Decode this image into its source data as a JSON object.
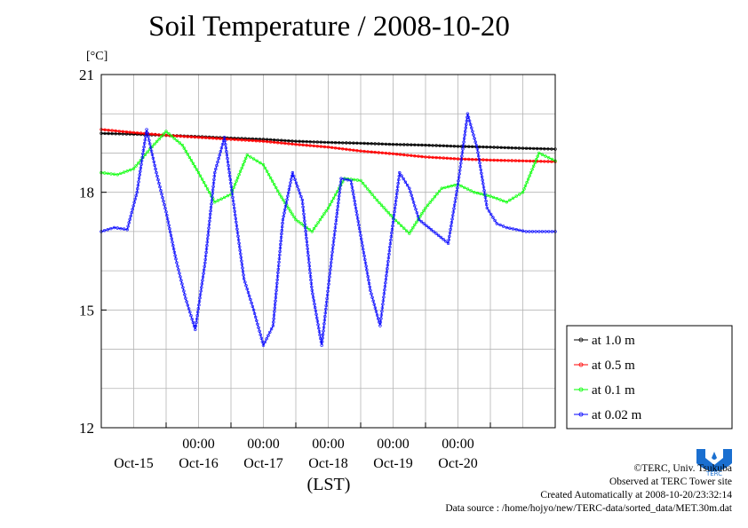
{
  "title": "Soil Temperature / 2008-10-20",
  "y_unit": "[°C]",
  "x_unit": "(LST)",
  "credits": {
    "copyright": "©TERC, Univ. Tsukuba",
    "site": "Observed at TERC Tower site",
    "created": "Created Automatically at 2008-10-20/23:32:14",
    "source": "Data source : /home/hojyo/new/TERC-data/sorted_data/MET.30m.dat"
  },
  "colors": {
    "at_1_0_m": "#000000",
    "at_0_5_m": "#ff0000",
    "at_0_1_m": "#00ff00",
    "at_0_02_m": "#0000ff"
  },
  "chart_data": {
    "type": "line",
    "title": "Soil Temperature / 2008-10-20",
    "xlabel": "(LST)",
    "ylabel": "[°C]",
    "x_unit": "day",
    "x_tick_labels": [
      {
        "x": 15,
        "top": "",
        "bottom": "Oct-15"
      },
      {
        "x": 16,
        "top": "00:00",
        "bottom": "Oct-16"
      },
      {
        "x": 17,
        "top": "00:00",
        "bottom": "Oct-17"
      },
      {
        "x": 18,
        "top": "00:00",
        "bottom": "Oct-18"
      },
      {
        "x": 19,
        "top": "00:00",
        "bottom": "Oct-19"
      },
      {
        "x": 20,
        "top": "00:00",
        "bottom": "Oct-20"
      }
    ],
    "xlim": [
      14.0,
      21.0
    ],
    "ylim": [
      12,
      21
    ],
    "y_ticks": [
      12,
      15,
      18,
      21
    ],
    "grid": true,
    "legend_position": "right",
    "series": [
      {
        "name": "at 1.0 m",
        "color": "#000000",
        "x": [
          14.0,
          14.5,
          15.0,
          15.5,
          16.0,
          16.5,
          17.0,
          17.5,
          18.0,
          18.5,
          19.0,
          19.5,
          20.0,
          20.5,
          21.0
        ],
        "y": [
          19.5,
          19.48,
          19.45,
          19.42,
          19.38,
          19.35,
          19.3,
          19.27,
          19.25,
          19.22,
          19.2,
          19.17,
          19.15,
          19.12,
          19.1
        ]
      },
      {
        "name": "at 0.5 m",
        "color": "#ff0000",
        "x": [
          14.0,
          14.5,
          15.0,
          15.5,
          16.0,
          16.5,
          17.0,
          17.5,
          18.0,
          18.5,
          19.0,
          19.5,
          20.0,
          20.5,
          21.0
        ],
        "y": [
          19.6,
          19.52,
          19.45,
          19.4,
          19.35,
          19.3,
          19.22,
          19.15,
          19.05,
          18.98,
          18.9,
          18.85,
          18.82,
          18.8,
          18.78
        ]
      },
      {
        "name": "at 0.1 m",
        "color": "#00ff00",
        "x": [
          14.0,
          14.25,
          14.5,
          14.75,
          15.0,
          15.25,
          15.5,
          15.75,
          16.0,
          16.25,
          16.5,
          16.75,
          17.0,
          17.25,
          17.5,
          17.75,
          18.0,
          18.25,
          18.5,
          18.75,
          19.0,
          19.25,
          19.5,
          19.75,
          20.0,
          20.25,
          20.5,
          20.75,
          21.0
        ],
        "y": [
          18.5,
          18.45,
          18.6,
          19.1,
          19.55,
          19.2,
          18.5,
          17.75,
          17.95,
          18.95,
          18.7,
          17.95,
          17.3,
          17.0,
          17.6,
          18.35,
          18.3,
          17.8,
          17.35,
          16.95,
          17.6,
          18.1,
          18.2,
          18.0,
          17.9,
          17.75,
          18.0,
          19.0,
          18.8
        ]
      },
      {
        "name": "at 0.02 m",
        "color": "#0000ff",
        "x": [
          14.0,
          14.2,
          14.4,
          14.55,
          14.7,
          14.85,
          15.0,
          15.15,
          15.3,
          15.45,
          15.6,
          15.75,
          15.9,
          16.05,
          16.2,
          16.35,
          16.5,
          16.65,
          16.8,
          16.95,
          17.1,
          17.25,
          17.4,
          17.55,
          17.7,
          17.85,
          18.0,
          18.15,
          18.3,
          18.45,
          18.6,
          18.75,
          18.9,
          19.05,
          19.2,
          19.35,
          19.5,
          19.65,
          19.8,
          19.95,
          20.1,
          20.25,
          20.4,
          20.55,
          20.7,
          20.85,
          21.0
        ],
        "y": [
          17.0,
          17.1,
          17.05,
          18.0,
          19.6,
          18.5,
          17.5,
          16.3,
          15.3,
          14.5,
          16.2,
          18.5,
          19.4,
          17.6,
          15.8,
          15.0,
          14.1,
          14.6,
          17.3,
          18.5,
          17.8,
          15.5,
          14.1,
          16.3,
          18.35,
          18.3,
          16.9,
          15.5,
          14.6,
          16.6,
          18.5,
          18.1,
          17.3,
          17.1,
          16.9,
          16.7,
          18.2,
          20.0,
          19.1,
          17.6,
          17.2,
          17.1,
          17.05,
          17.0,
          17.0,
          17.0,
          17.0
        ]
      }
    ]
  }
}
